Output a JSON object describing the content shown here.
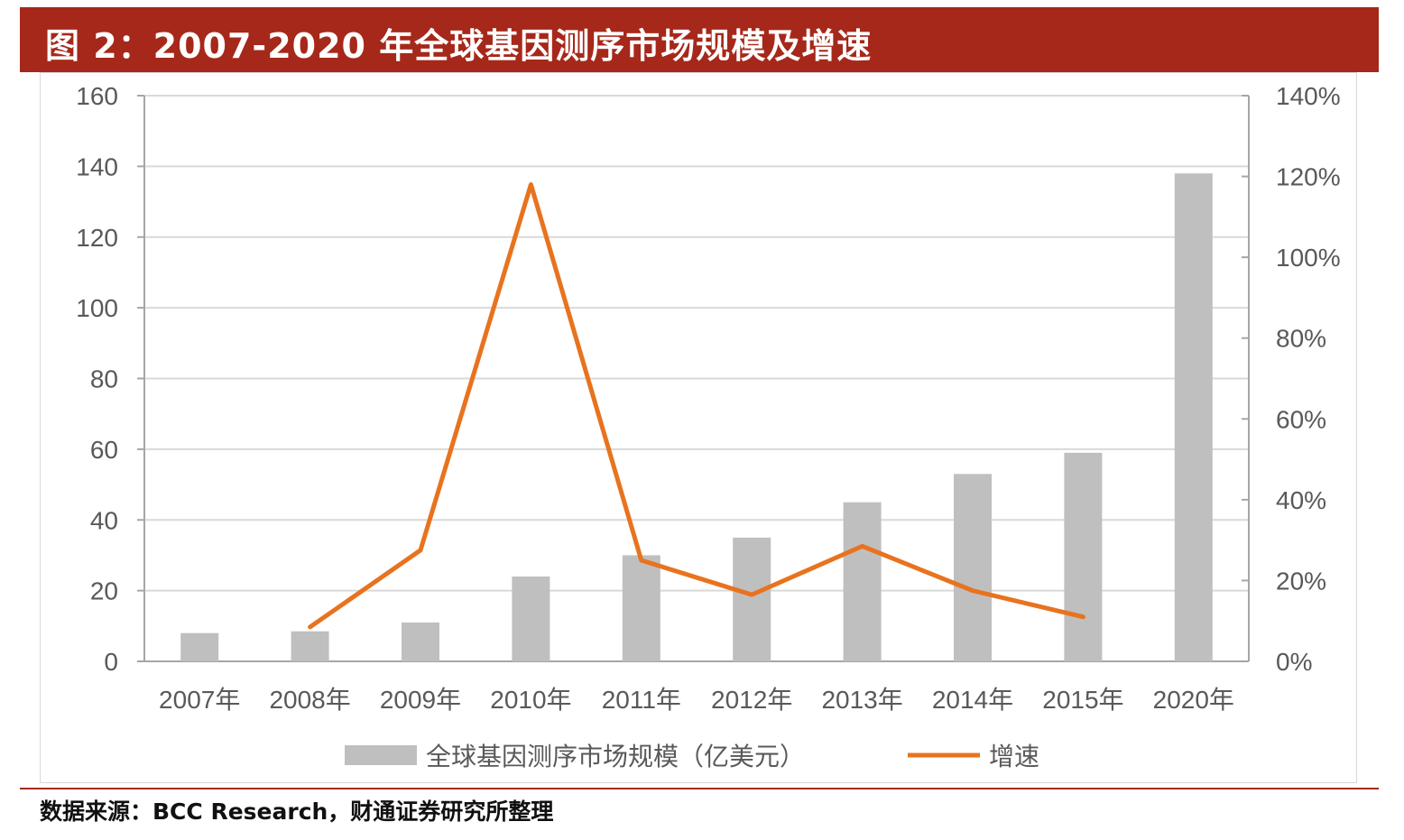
{
  "figure": {
    "title": "图 2：2007-2020 年全球基因测序市场规模及增速",
    "source": "数据来源：BCC Research，财通证券研究所整理"
  },
  "chart_data": {
    "type": "bar+line",
    "categories": [
      "2007年",
      "2008年",
      "2009年",
      "2010年",
      "2011年",
      "2012年",
      "2013年",
      "2014年",
      "2015年",
      "2020年"
    ],
    "series": [
      {
        "name": "全球基因测序市场规模（亿美元）",
        "type": "bar",
        "axis": "left",
        "color": "#bfbfbf",
        "values": [
          8,
          8.5,
          11,
          24,
          30,
          35,
          45,
          53,
          59,
          138
        ]
      },
      {
        "name": "增速",
        "type": "line",
        "axis": "right",
        "color": "#e8731f",
        "values": [
          null,
          8.5,
          27.5,
          118,
          25,
          16.5,
          28.5,
          17.5,
          11,
          null
        ]
      }
    ],
    "y_left": {
      "min": 0,
      "max": 160,
      "ticks": [
        "0",
        "20",
        "40",
        "60",
        "80",
        "100",
        "120",
        "140",
        "160"
      ]
    },
    "y_right": {
      "min": 0,
      "max": 140,
      "ticks": [
        "0%",
        "20%",
        "40%",
        "60%",
        "80%",
        "100%",
        "120%",
        "140%"
      ]
    },
    "grid": true,
    "legend_position": "bottom"
  }
}
